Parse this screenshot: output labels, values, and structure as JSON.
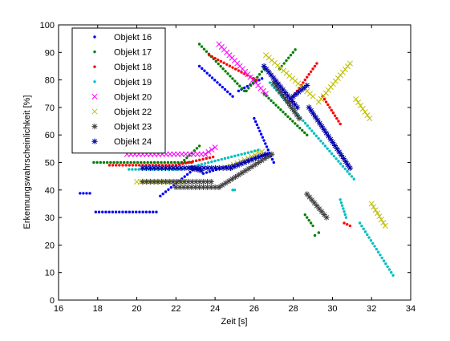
{
  "chart_data": {
    "type": "scatter",
    "xlabel": "Zeit [s]",
    "ylabel": "Erkennungswahrscheinlichkeit [%]",
    "xlim": [
      16,
      34
    ],
    "ylim": [
      0,
      100
    ],
    "xticks": [
      16,
      18,
      20,
      22,
      24,
      26,
      28,
      30,
      32,
      34
    ],
    "yticks": [
      0,
      10,
      20,
      30,
      40,
      50,
      60,
      70,
      80,
      90,
      100
    ],
    "grid": false,
    "legend_position": "top-left",
    "series": [
      {
        "name": "Objekt 16",
        "color": "#0000ff",
        "marker": "point",
        "segments": [
          {
            "x": [
              17.1,
              17.6
            ],
            "y": [
              38.8,
              38.8
            ]
          },
          {
            "x": [
              17.9,
              21.0
            ],
            "y": [
              32.0,
              32.0
            ]
          },
          {
            "x": [
              21.2,
              23.0
            ],
            "y": [
              37.8,
              48.0
            ]
          },
          {
            "x": [
              23.2,
              24.9
            ],
            "y": [
              85.0,
              74.0
            ]
          },
          {
            "x": [
              25.2,
              26.4
            ],
            "y": [
              76.0,
              80.5
            ]
          },
          {
            "x": [
              26.0,
              27.0
            ],
            "y": [
              66.0,
              50.0
            ]
          },
          {
            "x": [
              23.4,
              26.7
            ],
            "y": [
              46.0,
              53.0
            ]
          }
        ]
      },
      {
        "name": "Objekt 17",
        "color": "#008000",
        "marker": "point",
        "segments": [
          {
            "x": [
              17.8,
              22.8
            ],
            "y": [
              50.0,
              50.0
            ]
          },
          {
            "x": [
              22.3,
              23.2
            ],
            "y": [
              50.0,
              56.0
            ]
          },
          {
            "x": [
              23.2,
              25.5
            ],
            "y": [
              93.0,
              76.0
            ]
          },
          {
            "x": [
              25.6,
              26.5
            ],
            "y": [
              76.0,
              84.0
            ]
          },
          {
            "x": [
              26.5,
              28.7
            ],
            "y": [
              75.0,
              60.0
            ]
          },
          {
            "x": [
              27.3,
              28.1
            ],
            "y": [
              84.0,
              91.0
            ]
          },
          {
            "x": [
              28.6,
              29.0
            ],
            "y": [
              31.0,
              27.0
            ]
          },
          {
            "x": [
              29.1,
              29.3
            ],
            "y": [
              23.5,
              24.5
            ]
          }
        ]
      },
      {
        "name": "Objekt 18",
        "color": "#ff0000",
        "marker": "point",
        "segments": [
          {
            "x": [
              18.6,
              22.0
            ],
            "y": [
              49.0,
              49.0
            ]
          },
          {
            "x": [
              22.0,
              23.9
            ],
            "y": [
              49.0,
              52.0
            ]
          },
          {
            "x": [
              23.7,
              26.1
            ],
            "y": [
              89.0,
              80.0
            ]
          },
          {
            "x": [
              27.8,
              29.2
            ],
            "y": [
              72.0,
              86.0
            ]
          },
          {
            "x": [
              29.5,
              30.4
            ],
            "y": [
              74.0,
              64.0
            ]
          },
          {
            "x": [
              30.6,
              30.9
            ],
            "y": [
              28.0,
              27.0
            ]
          }
        ]
      },
      {
        "name": "Objekt 19",
        "color": "#00bfbf",
        "marker": "point",
        "segments": [
          {
            "x": [
              19.6,
              22.3
            ],
            "y": [
              47.5,
              47.5
            ]
          },
          {
            "x": [
              22.3,
              26.2
            ],
            "y": [
              47.5,
              54.5
            ]
          },
          {
            "x": [
              24.9,
              25.0
            ],
            "y": [
              40.0,
              40.0
            ]
          },
          {
            "x": [
              26.8,
              31.1
            ],
            "y": [
              79.0,
              44.0
            ]
          },
          {
            "x": [
              30.4,
              30.7
            ],
            "y": [
              36.5,
              30.0
            ]
          },
          {
            "x": [
              31.4,
              33.1
            ],
            "y": [
              28.0,
              9.0
            ]
          }
        ]
      },
      {
        "name": "Objekt 20",
        "color": "#ff00ff",
        "marker": "x",
        "segments": [
          {
            "x": [
              19.5,
              23.5
            ],
            "y": [
              53.0,
              53.0
            ]
          },
          {
            "x": [
              23.5,
              24.0
            ],
            "y": [
              53.0,
              55.5
            ]
          },
          {
            "x": [
              24.2,
              26.6
            ],
            "y": [
              93.0,
              75.0
            ]
          }
        ]
      },
      {
        "name": "Objekt 22",
        "color": "#bfbf00",
        "marker": "x",
        "segments": [
          {
            "x": [
              20.0,
              22.4
            ],
            "y": [
              43.0,
              43.0
            ]
          },
          {
            "x": [
              24.6,
              26.4
            ],
            "y": [
              48.0,
              54.0
            ]
          },
          {
            "x": [
              26.6,
              29.0
            ],
            "y": [
              89.0,
              74.0
            ]
          },
          {
            "x": [
              29.3,
              30.9
            ],
            "y": [
              72.0,
              86.0
            ]
          },
          {
            "x": [
              31.2,
              31.9
            ],
            "y": [
              73.0,
              66.0
            ]
          },
          {
            "x": [
              32.0,
              32.7
            ],
            "y": [
              35.0,
              27.0
            ]
          }
        ]
      },
      {
        "name": "Objekt 23",
        "color": "#404040",
        "marker": "star",
        "segments": [
          {
            "x": [
              20.3,
              23.8
            ],
            "y": [
              43.0,
              43.0
            ]
          },
          {
            "x": [
              22.0,
              24.2
            ],
            "y": [
              41.0,
              41.0
            ]
          },
          {
            "x": [
              24.2,
              26.9
            ],
            "y": [
              41.0,
              53.0
            ]
          },
          {
            "x": [
              27.0,
              28.3
            ],
            "y": [
              79.0,
              66.0
            ]
          },
          {
            "x": [
              28.7,
              29.7
            ],
            "y": [
              38.5,
              30.0
            ]
          }
        ]
      },
      {
        "name": "Objekt 24",
        "color": "#0000aa",
        "marker": "star",
        "segments": [
          {
            "x": [
              20.3,
              24.8
            ],
            "y": [
              48.0,
              48.0
            ]
          },
          {
            "x": [
              24.8,
              26.6
            ],
            "y": [
              48.0,
              53.0
            ]
          },
          {
            "x": [
              22.8,
              23.3
            ],
            "y": [
              48.0,
              47.0
            ]
          },
          {
            "x": [
              26.5,
              28.2
            ],
            "y": [
              85.0,
              70.0
            ]
          },
          {
            "x": [
              28.0,
              28.7
            ],
            "y": [
              74.0,
              78.0
            ]
          },
          {
            "x": [
              28.8,
              30.9
            ],
            "y": [
              70.0,
              48.0
            ]
          }
        ]
      }
    ]
  }
}
